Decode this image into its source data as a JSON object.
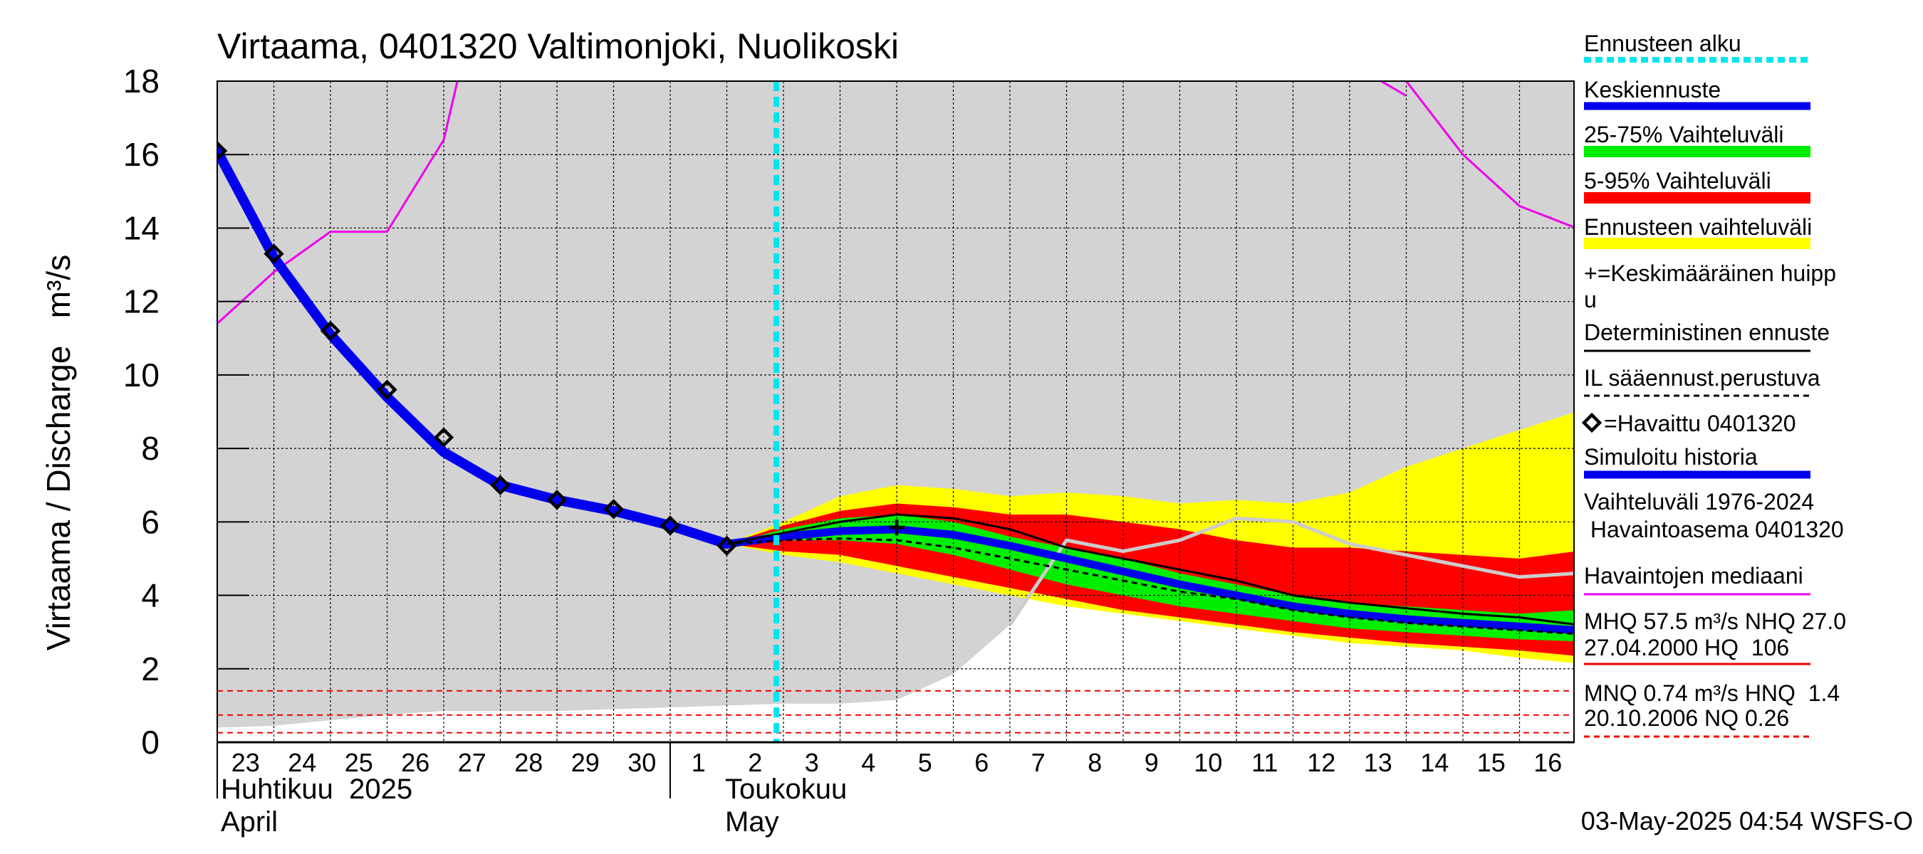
{
  "chart_data": {
    "type": "area",
    "title": "Virtaama, 0401320 Valtimonjoki, Nuolikoski",
    "ylabel": "Virtaama / Discharge   m³/s",
    "ylim": [
      0,
      18
    ],
    "yticks": [
      "0",
      "2",
      "4",
      "6",
      "8",
      "10",
      "12",
      "14",
      "16",
      "18"
    ],
    "grid": true,
    "legend_position": "right",
    "footer": "03-May-2025 04:54 WSFS-O",
    "x_day_labels": [
      "23",
      "24",
      "25",
      "26",
      "27",
      "28",
      "29",
      "30",
      "1",
      "2",
      "3",
      "4",
      "5",
      "6",
      "7",
      "8",
      "9",
      "10",
      "11",
      "12",
      "13",
      "14",
      "15",
      "16"
    ],
    "x_month_labels": {
      "april_fi": "Huhtikuu  2025",
      "april_en": "April",
      "may_fi": "Toukokuu",
      "may_en": "May"
    },
    "x_dates": [
      "2025-04-23",
      "2025-04-24",
      "2025-04-25",
      "2025-04-26",
      "2025-04-27",
      "2025-04-28",
      "2025-04-29",
      "2025-04-30",
      "2025-05-01",
      "2025-05-02",
      "2025-05-03",
      "2025-05-04",
      "2025-05-05",
      "2025-05-06",
      "2025-05-07",
      "2025-05-08",
      "2025-05-09",
      "2025-05-10",
      "2025-05-11",
      "2025-05-12",
      "2025-05-13",
      "2025-05-14",
      "2025-05-15",
      "2025-05-16",
      "2025-05-17"
    ],
    "forecast_start_date": "2025-05-02 21:00",
    "colors": {
      "history_range": "#d3d3d3",
      "ensemble_range": "#ffff00",
      "range_5_95": "#ff0000",
      "range_25_75": "#00ee00",
      "mean_forecast": "#0000ee",
      "simulated_history": "#0000ee",
      "median": "#ee00ee",
      "deterministic": "#000000",
      "forecast_start": "#00e5ee",
      "station_obs": "#cccccc",
      "thresholds": "#ee0000"
    },
    "series": {
      "history_range": {
        "date": [
          "2025-04-23",
          "2025-04-24",
          "2025-04-25",
          "2025-04-26",
          "2025-04-27",
          "2025-04-28",
          "2025-04-29",
          "2025-04-30",
          "2025-05-01",
          "2025-05-02",
          "2025-05-03",
          "2025-05-04",
          "2025-05-05",
          "2025-05-06",
          "2025-05-07",
          "2025-05-08",
          "2025-05-09",
          "2025-05-10",
          "2025-05-11",
          "2025-05-12",
          "2025-05-13",
          "2025-05-14",
          "2025-05-15",
          "2025-05-16",
          "2025-05-17"
        ],
        "low": [
          0.4,
          0.45,
          0.6,
          0.75,
          0.85,
          0.85,
          0.85,
          0.9,
          0.95,
          1.0,
          1.05,
          1.05,
          1.15,
          1.85,
          3.2,
          5.5,
          5.2,
          5.5,
          6.1,
          6.0,
          5.4,
          5.1,
          4.8,
          4.5,
          4.6
        ],
        "high": [
          18,
          18,
          18,
          18,
          18,
          18,
          18,
          18,
          18,
          18,
          18,
          18,
          18,
          18,
          18,
          18,
          18,
          18,
          18,
          18,
          18,
          18,
          18,
          18,
          18
        ]
      },
      "ensemble_range": {
        "date": [
          "2025-05-02",
          "2025-05-03",
          "2025-05-04",
          "2025-05-05",
          "2025-05-06",
          "2025-05-07",
          "2025-05-08",
          "2025-05-09",
          "2025-05-10",
          "2025-05-11",
          "2025-05-12",
          "2025-05-13",
          "2025-05-14",
          "2025-05-15",
          "2025-05-16",
          "2025-05-17"
        ],
        "low": [
          5.4,
          5.1,
          4.9,
          4.6,
          4.3,
          4.0,
          3.7,
          3.5,
          3.3,
          3.1,
          2.9,
          2.7,
          2.6,
          2.5,
          2.3,
          2.15
        ],
        "high": [
          5.4,
          6.0,
          6.7,
          7.0,
          6.9,
          6.7,
          6.8,
          6.7,
          6.5,
          6.6,
          6.5,
          6.8,
          7.5,
          8.0,
          8.5,
          9.0
        ]
      },
      "range_5_95": {
        "date": [
          "2025-05-02",
          "2025-05-03",
          "2025-05-04",
          "2025-05-05",
          "2025-05-06",
          "2025-05-07",
          "2025-05-08",
          "2025-05-09",
          "2025-05-10",
          "2025-05-11",
          "2025-05-12",
          "2025-05-13",
          "2025-05-14",
          "2025-05-15",
          "2025-05-16",
          "2025-05-17"
        ],
        "low": [
          5.4,
          5.2,
          5.1,
          4.8,
          4.5,
          4.2,
          3.9,
          3.6,
          3.4,
          3.2,
          3.0,
          2.85,
          2.7,
          2.6,
          2.5,
          2.35
        ],
        "high": [
          5.4,
          5.9,
          6.3,
          6.5,
          6.4,
          6.2,
          6.2,
          6.0,
          5.8,
          5.5,
          5.3,
          5.3,
          5.2,
          5.1,
          5.0,
          5.2
        ]
      },
      "range_25_75": {
        "date": [
          "2025-05-02",
          "2025-05-03",
          "2025-05-04",
          "2025-05-05",
          "2025-05-06",
          "2025-05-07",
          "2025-05-08",
          "2025-05-09",
          "2025-05-10",
          "2025-05-11",
          "2025-05-12",
          "2025-05-13",
          "2025-05-14",
          "2025-05-15",
          "2025-05-16",
          "2025-05-17"
        ],
        "low": [
          5.4,
          5.5,
          5.5,
          5.4,
          5.1,
          4.7,
          4.3,
          4.0,
          3.7,
          3.5,
          3.3,
          3.1,
          3.0,
          2.9,
          2.8,
          2.75
        ],
        "high": [
          5.4,
          5.8,
          6.1,
          6.2,
          6.0,
          5.6,
          5.3,
          5.0,
          4.6,
          4.3,
          4.0,
          3.8,
          3.7,
          3.6,
          3.5,
          3.6
        ]
      },
      "simulated_history": {
        "date": [
          "2025-04-23",
          "2025-04-24",
          "2025-04-25",
          "2025-04-26",
          "2025-04-27",
          "2025-04-28",
          "2025-04-29",
          "2025-04-30",
          "2025-05-01",
          "2025-05-02"
        ],
        "y": [
          16.1,
          13.2,
          11.1,
          9.4,
          7.9,
          7.0,
          6.6,
          6.3,
          5.9,
          5.4
        ]
      },
      "mean_forecast": {
        "date": [
          "2025-05-02",
          "2025-05-03",
          "2025-05-04",
          "2025-05-05",
          "2025-05-06",
          "2025-05-07",
          "2025-05-08",
          "2025-05-09",
          "2025-05-10",
          "2025-05-11",
          "2025-05-12",
          "2025-05-13",
          "2025-05-14",
          "2025-05-15",
          "2025-05-16",
          "2025-05-17"
        ],
        "y": [
          5.4,
          5.6,
          5.75,
          5.8,
          5.65,
          5.35,
          5.0,
          4.65,
          4.3,
          4.0,
          3.7,
          3.5,
          3.35,
          3.25,
          3.15,
          3.05
        ]
      },
      "deterministic": {
        "date": [
          "2025-05-02",
          "2025-05-03",
          "2025-05-04",
          "2025-05-05",
          "2025-05-06",
          "2025-05-07",
          "2025-05-08",
          "2025-05-09",
          "2025-05-10",
          "2025-05-11",
          "2025-05-12",
          "2025-05-13",
          "2025-05-14",
          "2025-05-15",
          "2025-05-16",
          "2025-05-17"
        ],
        "y": [
          5.4,
          5.7,
          6.0,
          6.2,
          6.1,
          5.8,
          5.3,
          5.0,
          4.7,
          4.4,
          4.0,
          3.8,
          3.65,
          3.5,
          3.4,
          3.2
        ]
      },
      "il_forecast": {
        "date": [
          "2025-05-02",
          "2025-05-03",
          "2025-05-04",
          "2025-05-05",
          "2025-05-06",
          "2025-05-07",
          "2025-05-08",
          "2025-05-09",
          "2025-05-10",
          "2025-05-11",
          "2025-05-12",
          "2025-05-13",
          "2025-05-14",
          "2025-05-15",
          "2025-05-16",
          "2025-05-17"
        ],
        "y": [
          5.4,
          5.5,
          5.55,
          5.5,
          5.3,
          5.0,
          4.7,
          4.4,
          4.1,
          3.9,
          3.6,
          3.4,
          3.25,
          3.15,
          3.05,
          2.95
        ]
      },
      "observed": {
        "date": [
          "2025-04-23",
          "2025-04-24",
          "2025-04-25",
          "2025-04-26",
          "2025-04-27",
          "2025-04-28",
          "2025-04-29",
          "2025-04-30",
          "2025-05-01",
          "2025-05-02"
        ],
        "y": [
          16.1,
          13.3,
          11.2,
          9.6,
          8.3,
          7.0,
          6.6,
          6.35,
          5.9,
          5.35
        ]
      },
      "median": {
        "date": [
          "2025-04-23",
          "2025-04-24",
          "2025-04-25",
          "2025-04-26",
          "2025-04-27",
          "2025-04-28",
          "2025-05-14",
          "2025-05-15",
          "2025-05-16",
          "2025-05-17"
        ],
        "y": [
          11.4,
          12.8,
          13.9,
          13.9,
          16.4,
          23.0,
          18.0,
          16.0,
          14.6,
          14.0
        ]
      },
      "median_peak_gap": {
        "date": [
          "2025-05-13",
          "2025-05-14"
        ],
        "y": [
          18.5,
          17.6
        ]
      },
      "mean_peak": {
        "date": "2025-05-05",
        "y": 5.85
      }
    },
    "thresholds": [
      1.4,
      0.74,
      0.26
    ],
    "legend": [
      "Ennusteen alku",
      "Keskiennuste",
      "25-75% Vaihteluväli",
      "5-95% Vaihteluväli",
      "Ennusteen vaihteluväli",
      "+=Keskimääräinen huipp",
      "u",
      "Deterministinen ennuste",
      "IL sääennust.perustuva",
      "=Havaittu 0401320",
      "Simuloitu historia",
      "Vaihteluväli 1976-2024",
      " Havaintoasema 0401320",
      "Havaintojen mediaani",
      "MHQ 57.5 m³/s NHQ 27.0",
      "27.04.2000 HQ  106",
      "MNQ 0.74 m³/s HNQ  1.4",
      "20.10.2006 NQ 0.26"
    ]
  }
}
